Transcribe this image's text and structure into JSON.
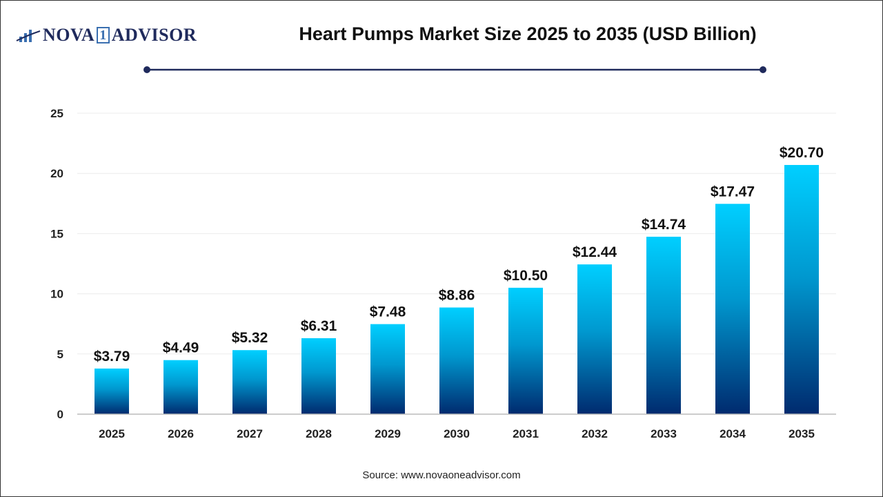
{
  "logo": {
    "text_left": "NOVA",
    "text_mid": "1",
    "text_right": "ADVISOR"
  },
  "title": "Heart Pumps Market Size 2025 to 2035 (USD Billion)",
  "source": "Source: www.novaoneadvisor.com",
  "colors": {
    "bar_top": "#00cfff",
    "bar_bottom": "#002a6e",
    "title_line": "#1f2a5c"
  },
  "chart_data": {
    "type": "bar",
    "title": "Heart Pumps Market Size 2025 to 2035 (USD Billion)",
    "categories": [
      "2025",
      "2026",
      "2027",
      "2028",
      "2029",
      "2030",
      "2031",
      "2032",
      "2033",
      "2034",
      "2035"
    ],
    "values": [
      3.79,
      4.49,
      5.32,
      6.31,
      7.48,
      8.86,
      10.5,
      12.44,
      14.74,
      17.47,
      20.7
    ],
    "data_labels": [
      "$3.79",
      "$4.49",
      "$5.32",
      "$6.31",
      "$7.48",
      "$8.86",
      "$10.50",
      "$12.44",
      "$14.74",
      "$17.47",
      "$20.70"
    ],
    "yticks": [
      0,
      5,
      10,
      15,
      20,
      25
    ],
    "ylim": [
      0,
      25
    ],
    "grid": true,
    "xlabel": "",
    "ylabel": ""
  }
}
